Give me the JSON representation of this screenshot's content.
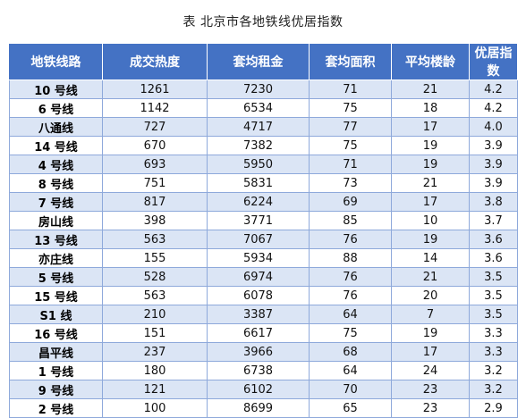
{
  "caption": "表  北京市各地铁线优居指数",
  "table": {
    "headers": [
      "地铁线路",
      "成交热度",
      "套均租金",
      "套均面积",
      "平均楼龄",
      "优居指数"
    ],
    "rows": [
      [
        "10 号线",
        "1261",
        "7230",
        "71",
        "21",
        "4.2"
      ],
      [
        "6 号线",
        "1142",
        "6534",
        "75",
        "18",
        "4.2"
      ],
      [
        "八通线",
        "727",
        "4717",
        "77",
        "17",
        "4.0"
      ],
      [
        "14 号线",
        "670",
        "7382",
        "75",
        "19",
        "3.9"
      ],
      [
        "4 号线",
        "693",
        "5950",
        "71",
        "19",
        "3.9"
      ],
      [
        "8 号线",
        "751",
        "5831",
        "73",
        "21",
        "3.9"
      ],
      [
        "7 号线",
        "817",
        "6224",
        "69",
        "17",
        "3.8"
      ],
      [
        "房山线",
        "398",
        "3771",
        "85",
        "10",
        "3.7"
      ],
      [
        "13 号线",
        "563",
        "7067",
        "76",
        "19",
        "3.6"
      ],
      [
        "亦庄线",
        "155",
        "5934",
        "88",
        "14",
        "3.6"
      ],
      [
        "5 号线",
        "528",
        "6974",
        "76",
        "21",
        "3.5"
      ],
      [
        "15 号线",
        "563",
        "6078",
        "76",
        "20",
        "3.5"
      ],
      [
        "S1 线",
        "210",
        "3387",
        "64",
        "7",
        "3.5"
      ],
      [
        "16 号线",
        "151",
        "6617",
        "75",
        "19",
        "3.3"
      ],
      [
        "昌平线",
        "237",
        "3966",
        "68",
        "17",
        "3.3"
      ],
      [
        "1 号线",
        "180",
        "6738",
        "64",
        "24",
        "3.2"
      ],
      [
        "9 号线",
        "121",
        "6102",
        "70",
        "23",
        "3.2"
      ],
      [
        "2 号线",
        "100",
        "8699",
        "65",
        "23",
        "2.9"
      ]
    ]
  }
}
